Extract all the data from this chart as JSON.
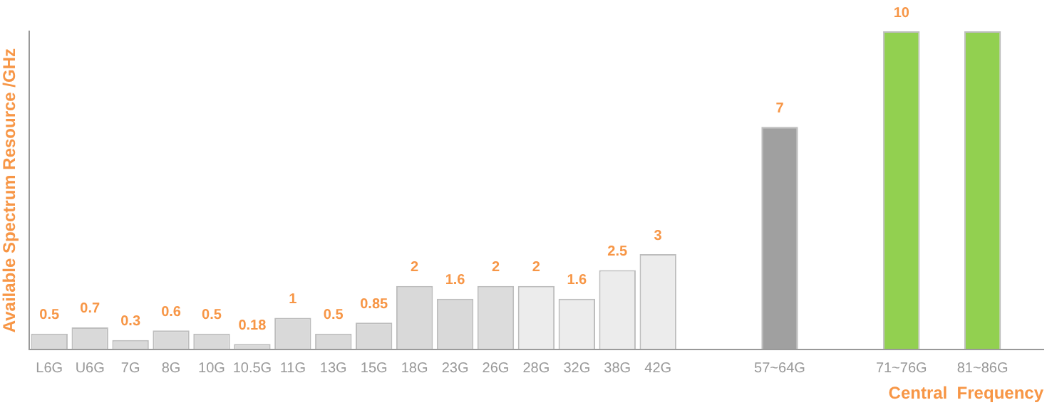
{
  "chart_data": {
    "type": "bar",
    "xlabel": "Central  Frequency",
    "ylabel": "Available Spectrum Resource /GHz",
    "categories": [
      "L6G",
      "U6G",
      "7G",
      "8G",
      "10G",
      "10.5G",
      "11G",
      "13G",
      "15G",
      "18G",
      "23G",
      "26G",
      "28G",
      "32G",
      "38G",
      "42G",
      null,
      null,
      "57~64G",
      null,
      null,
      "71~76G",
      null,
      "81~86G",
      null
    ],
    "values": [
      0.5,
      0.7,
      0.3,
      0.6,
      0.5,
      0.18,
      1,
      0.5,
      0.85,
      2,
      1.6,
      2,
      2,
      1.6,
      2.5,
      3,
      null,
      null,
      7,
      null,
      null,
      10,
      null,
      10,
      null
    ],
    "colors": [
      "#d9d9d9",
      "#d9d9d9",
      "#d9d9d9",
      "#d9d9d9",
      "#d9d9d9",
      "#d9d9d9",
      "#d9d9d9",
      "#d9d9d9",
      "#d9d9d9",
      "#d9d9d9",
      "#d9d9d9",
      "#dcdcdc",
      "#ececec",
      "#ececec",
      "#ececec",
      "#ececec",
      null,
      null,
      "#a0a0a0",
      null,
      null,
      "#92d050",
      null,
      "#92d050",
      null
    ],
    "value_labels": [
      "0.5",
      "0.7",
      "0.3",
      "0.6",
      "0.5",
      "0.18",
      "1",
      "0.5",
      "0.85",
      "2",
      "1.6",
      "2",
      "2",
      "1.6",
      "2.5",
      "3",
      null,
      null,
      "7",
      null,
      null,
      "10",
      null,
      null,
      null
    ],
    "tick_labels": "x",
    "grid": false,
    "legend": false
  }
}
